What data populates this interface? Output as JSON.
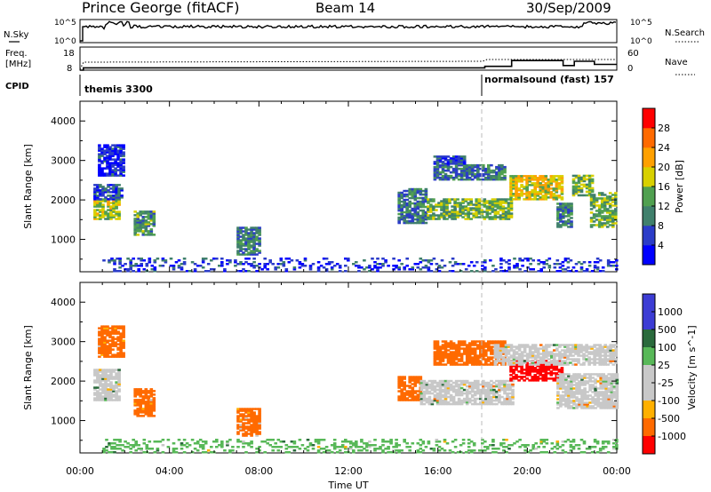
{
  "header": {
    "station": "Prince George (fitACF)",
    "beam": "Beam 14",
    "date": "30/Sep/2009"
  },
  "summary_panels": {
    "nsky": {
      "label": "N.Sky",
      "ticks": [
        "10^5",
        "10^0"
      ]
    },
    "nsearch": {
      "label": "N.Search",
      "ticks": [
        "10^5",
        "10^0"
      ]
    },
    "freq": {
      "label_line1": "Freq.",
      "label_line2": "[MHz]",
      "ticks": [
        "18",
        "8"
      ]
    },
    "nave": {
      "label": "Nave",
      "ticks": [
        "60",
        "0"
      ]
    },
    "cpid": {
      "label": "CPID",
      "mode1": "themis 3300",
      "mode2": "normalsound (fast) 157"
    }
  },
  "colors": {
    "power_scale": [
      "#0000ff",
      "#2b3cc8",
      "#40806c",
      "#50a050",
      "#d8d000",
      "#ffa000",
      "#ff6a00",
      "#ff0000"
    ],
    "velocity_scale": [
      "#3c3cd4",
      "#2a6a3c",
      "#58b858",
      "#c8c8c8",
      "#c8c8c8",
      "#ffb000",
      "#ff6a00",
      "#ff0000"
    ]
  },
  "chart_data": [
    {
      "type": "heatmap",
      "title": "",
      "quantity_label": "Power [dB]",
      "ylabel": "Slant Range [km]",
      "xlabel": "Time UT",
      "xlim": [
        "00:00",
        "24:00"
      ],
      "ylim": [
        180,
        4500
      ],
      "yticks": [
        "1000",
        "2000",
        "3000",
        "4000"
      ],
      "xticks": [
        "00:00",
        "04:00",
        "08:00",
        "12:00",
        "16:00",
        "20:00",
        "00:00"
      ],
      "colorbar_ticks": [
        "4",
        "8",
        "12",
        "16",
        "20",
        "24",
        "28"
      ],
      "colorbar_range": [
        0,
        32
      ],
      "regions": [
        {
          "t0": 0.6,
          "t1": 1.8,
          "r0": 1500,
          "r1": 2000,
          "value": 16
        },
        {
          "t0": 0.6,
          "t1": 1.9,
          "r0": 2000,
          "r1": 2400,
          "value": 6
        },
        {
          "t0": 0.8,
          "t1": 2.0,
          "r0": 2600,
          "r1": 3400,
          "value": 4
        },
        {
          "t0": 2.4,
          "t1": 3.3,
          "r0": 1100,
          "r1": 1700,
          "value": 12
        },
        {
          "t0": 14.2,
          "t1": 15.5,
          "r0": 1400,
          "r1": 2300,
          "value": 9
        },
        {
          "t0": 15.5,
          "t1": 19.3,
          "r0": 1500,
          "r1": 2000,
          "value": 14
        },
        {
          "t0": 15.8,
          "t1": 19.0,
          "r0": 2500,
          "r1": 2900,
          "value": 9
        },
        {
          "t0": 15.8,
          "t1": 17.2,
          "r0": 2900,
          "r1": 3100,
          "value": 6
        },
        {
          "t0": 19.2,
          "t1": 21.5,
          "r0": 2000,
          "r1": 2600,
          "value": 19
        },
        {
          "t0": 21.3,
          "t1": 22.0,
          "r0": 1300,
          "r1": 1900,
          "value": 10
        },
        {
          "t0": 22.0,
          "t1": 22.9,
          "r0": 2100,
          "r1": 2600,
          "value": 15
        },
        {
          "t0": 22.8,
          "t1": 24.0,
          "r0": 1300,
          "r1": 2200,
          "value": 14
        },
        {
          "t0": 7.0,
          "t1": 8.0,
          "r0": 600,
          "r1": 1300,
          "value": 10
        },
        {
          "t0": 1.0,
          "t1": 24.0,
          "r0": 180,
          "r1": 500,
          "value": 5
        }
      ]
    },
    {
      "type": "heatmap",
      "title": "",
      "quantity_label": "Velocity [m s^-1]",
      "ylabel": "Slant Range [km]",
      "xlabel": "Time UT",
      "xlim": [
        "00:00",
        "24:00"
      ],
      "ylim": [
        180,
        4500
      ],
      "yticks": [
        "1000",
        "2000",
        "3000",
        "4000"
      ],
      "xticks": [
        "00:00",
        "04:00",
        "08:00",
        "12:00",
        "16:00",
        "20:00",
        "00:00"
      ],
      "colorbar_ticks": [
        "1000",
        "500",
        "100",
        "25",
        "-25",
        "-100",
        "-500",
        "-1000"
      ],
      "regions": [
        {
          "t0": 0.6,
          "t1": 1.8,
          "r0": 1500,
          "r1": 2300,
          "value": 0
        },
        {
          "t0": 0.8,
          "t1": 2.0,
          "r0": 2600,
          "r1": 3400,
          "value": -150
        },
        {
          "t0": 2.4,
          "t1": 3.3,
          "r0": 1100,
          "r1": 1800,
          "value": -120
        },
        {
          "t0": 14.2,
          "t1": 15.2,
          "r0": 1500,
          "r1": 2100,
          "value": -300
        },
        {
          "t0": 15.2,
          "t1": 19.3,
          "r0": 1400,
          "r1": 2000,
          "value": 0
        },
        {
          "t0": 15.8,
          "t1": 19.0,
          "r0": 2400,
          "r1": 3000,
          "value": -250
        },
        {
          "t0": 19.2,
          "t1": 21.5,
          "r0": 2000,
          "r1": 2500,
          "value": -700
        },
        {
          "t0": 18.5,
          "t1": 24.0,
          "r0": 2400,
          "r1": 2900,
          "value": 0
        },
        {
          "t0": 21.3,
          "t1": 24.0,
          "r0": 1300,
          "r1": 2200,
          "value": 0
        },
        {
          "t0": 7.0,
          "t1": 8.0,
          "r0": 600,
          "r1": 1300,
          "value": -120
        },
        {
          "t0": 1.0,
          "t1": 24.0,
          "r0": 180,
          "r1": 500,
          "value": 60
        }
      ]
    }
  ]
}
